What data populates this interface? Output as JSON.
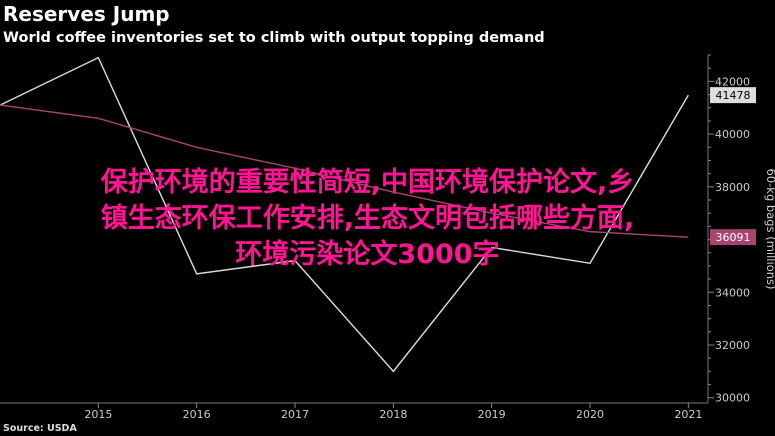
{
  "title": "Reserves Jump",
  "subtitle": "World coffee inventories set to climb with output topping demand",
  "source": "Source: USDA",
  "overlay": {
    "line1": "保护环境的重要性简短,中国环境保护论文,乡",
    "line2": "镇生态环保工作安排,生态文明包括哪些方面,",
    "line3": "环境污染论文3000字"
  },
  "colors": {
    "background": "#000000",
    "series_white": "#dddddd",
    "series_pink": "#a8456f",
    "overlay_text": "#ff1493",
    "grid": "#555555"
  },
  "chart_data": {
    "type": "line",
    "x": [
      2014,
      2015,
      2016,
      2017,
      2018,
      2019,
      2020,
      2021
    ],
    "xticks": [
      2015,
      2016,
      2017,
      2018,
      2019,
      2020,
      2021
    ],
    "xlim": [
      2014,
      2021.2
    ],
    "ylim": [
      29800,
      43000
    ],
    "yticks": [
      30000,
      32000,
      34000,
      36000,
      38000,
      40000,
      42000
    ],
    "ytick_labels": [
      "30000",
      "32000",
      "34000",
      "36000",
      "38000",
      "40000",
      "42000"
    ],
    "ylabel": "60-kg bags (millions)",
    "grid": false,
    "series": [
      {
        "color": "#dddddd",
        "values": [
          41100,
          42900,
          34700,
          35200,
          31000,
          35700,
          35100,
          41478
        ],
        "end_label": "41478"
      },
      {
        "color": "#a8456f",
        "values": [
          41100,
          40600,
          39500,
          38700,
          37800,
          37000,
          36300,
          36091
        ],
        "end_label": "36091"
      }
    ]
  }
}
